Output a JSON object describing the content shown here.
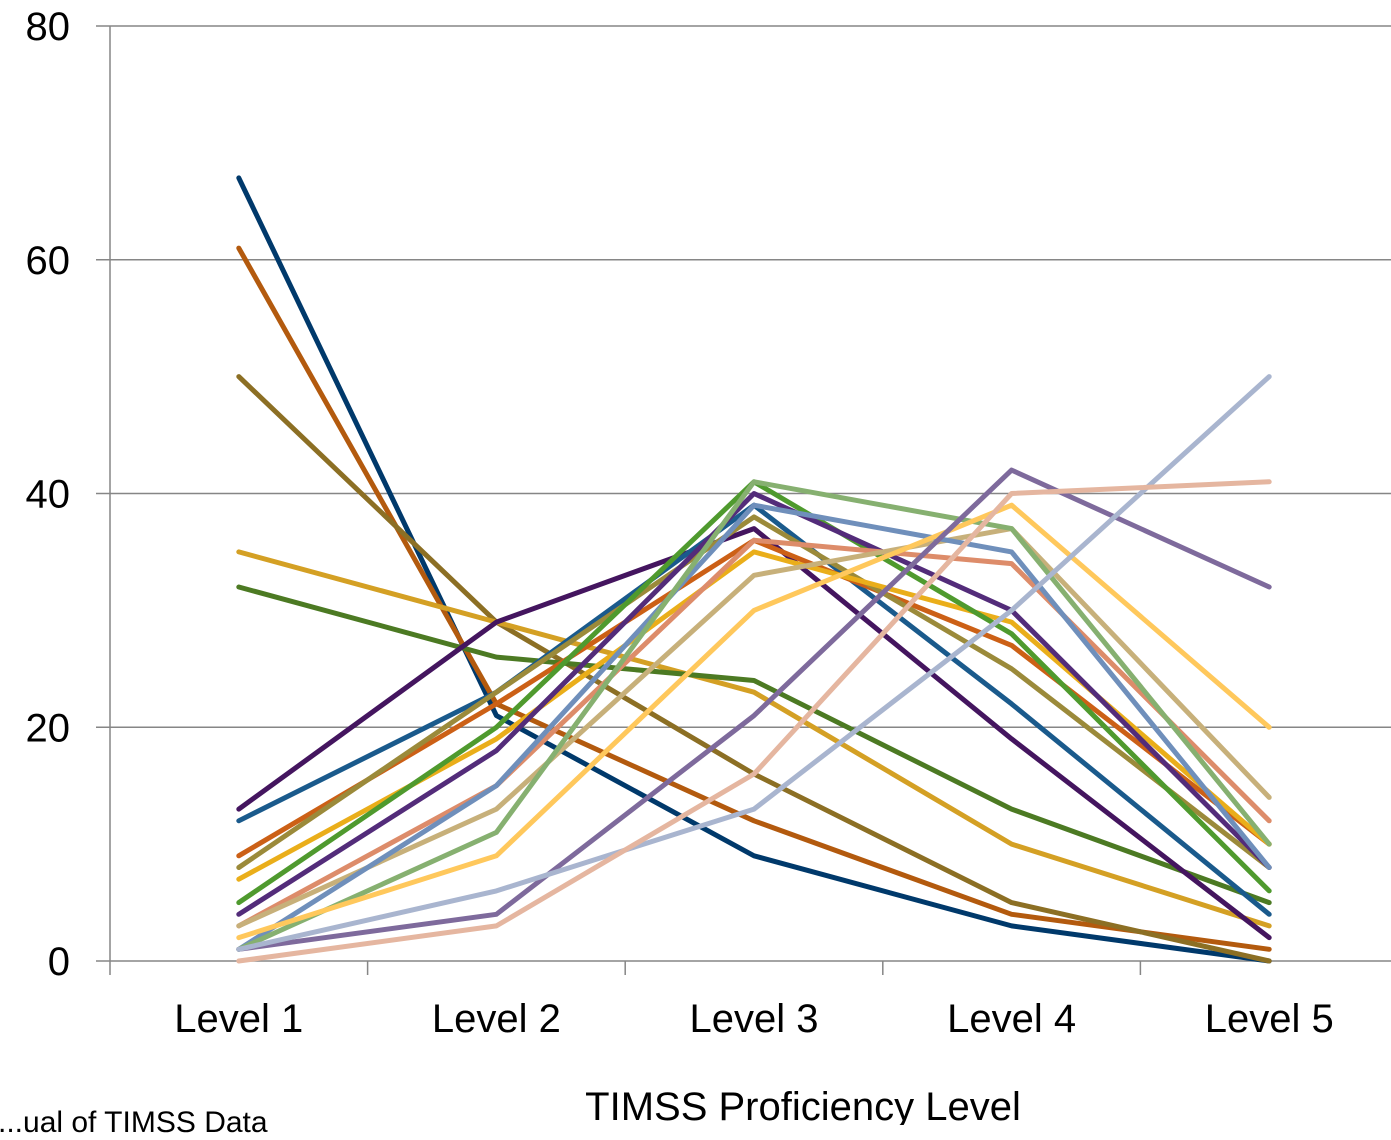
{
  "chart_data": {
    "type": "line",
    "title": "",
    "xlabel": "TIMSS Proficiency Level",
    "ylabel": "",
    "categories": [
      "Level 1",
      "Level 2",
      "Level 3",
      "Level 4",
      "Level 5"
    ],
    "ylim": [
      0,
      80
    ],
    "yticks": [
      "0",
      "20",
      "40",
      "60",
      "80"
    ],
    "grid": true,
    "series": [
      {
        "color": "#00396b",
        "values": [
          67,
          21,
          9,
          3,
          0
        ]
      },
      {
        "color": "#b35a0e",
        "values": [
          61,
          22,
          12,
          4,
          1
        ]
      },
      {
        "color": "#8c6f24",
        "values": [
          50,
          29,
          16,
          5,
          0
        ]
      },
      {
        "color": "#d4a024",
        "values": [
          35,
          29,
          23,
          10,
          3
        ]
      },
      {
        "color": "#4c7a23",
        "values": [
          32,
          26,
          24,
          13,
          5
        ]
      },
      {
        "color": "#44155f",
        "values": [
          13,
          29,
          37,
          19,
          2
        ]
      },
      {
        "color": "#1a5a8c",
        "values": [
          12,
          23,
          39,
          22,
          4
        ]
      },
      {
        "color": "#cc6016",
        "values": [
          9,
          22,
          36,
          27,
          10
        ]
      },
      {
        "color": "#9b8a3a",
        "values": [
          8,
          23,
          38,
          25,
          8
        ]
      },
      {
        "color": "#eaae1a",
        "values": [
          7,
          19,
          35,
          29,
          10
        ]
      },
      {
        "color": "#4f9a2e",
        "values": [
          5,
          20,
          41,
          28,
          6
        ]
      },
      {
        "color": "#532c7a",
        "values": [
          4,
          18,
          40,
          30,
          8
        ]
      },
      {
        "color": "#dd8c6a",
        "values": [
          3,
          15,
          36,
          34,
          12
        ]
      },
      {
        "color": "#c7b07a",
        "values": [
          3,
          13,
          33,
          37,
          14
        ]
      },
      {
        "color": "#6f8fbb",
        "values": [
          1,
          15,
          39,
          35,
          8
        ]
      },
      {
        "color": "#86b070",
        "values": [
          1,
          11,
          41,
          37,
          10
        ]
      },
      {
        "color": "#ffc85c",
        "values": [
          2,
          9,
          30,
          39,
          20
        ]
      },
      {
        "color": "#7e6a9c",
        "values": [
          1,
          4,
          21,
          42,
          32
        ]
      },
      {
        "color": "#a9b5cf",
        "values": [
          1,
          6,
          13,
          30,
          50
        ]
      },
      {
        "color": "#e5b6a0",
        "values": [
          0,
          3,
          16,
          40,
          41
        ]
      }
    ]
  },
  "note": "...ual of TIMSS Data"
}
